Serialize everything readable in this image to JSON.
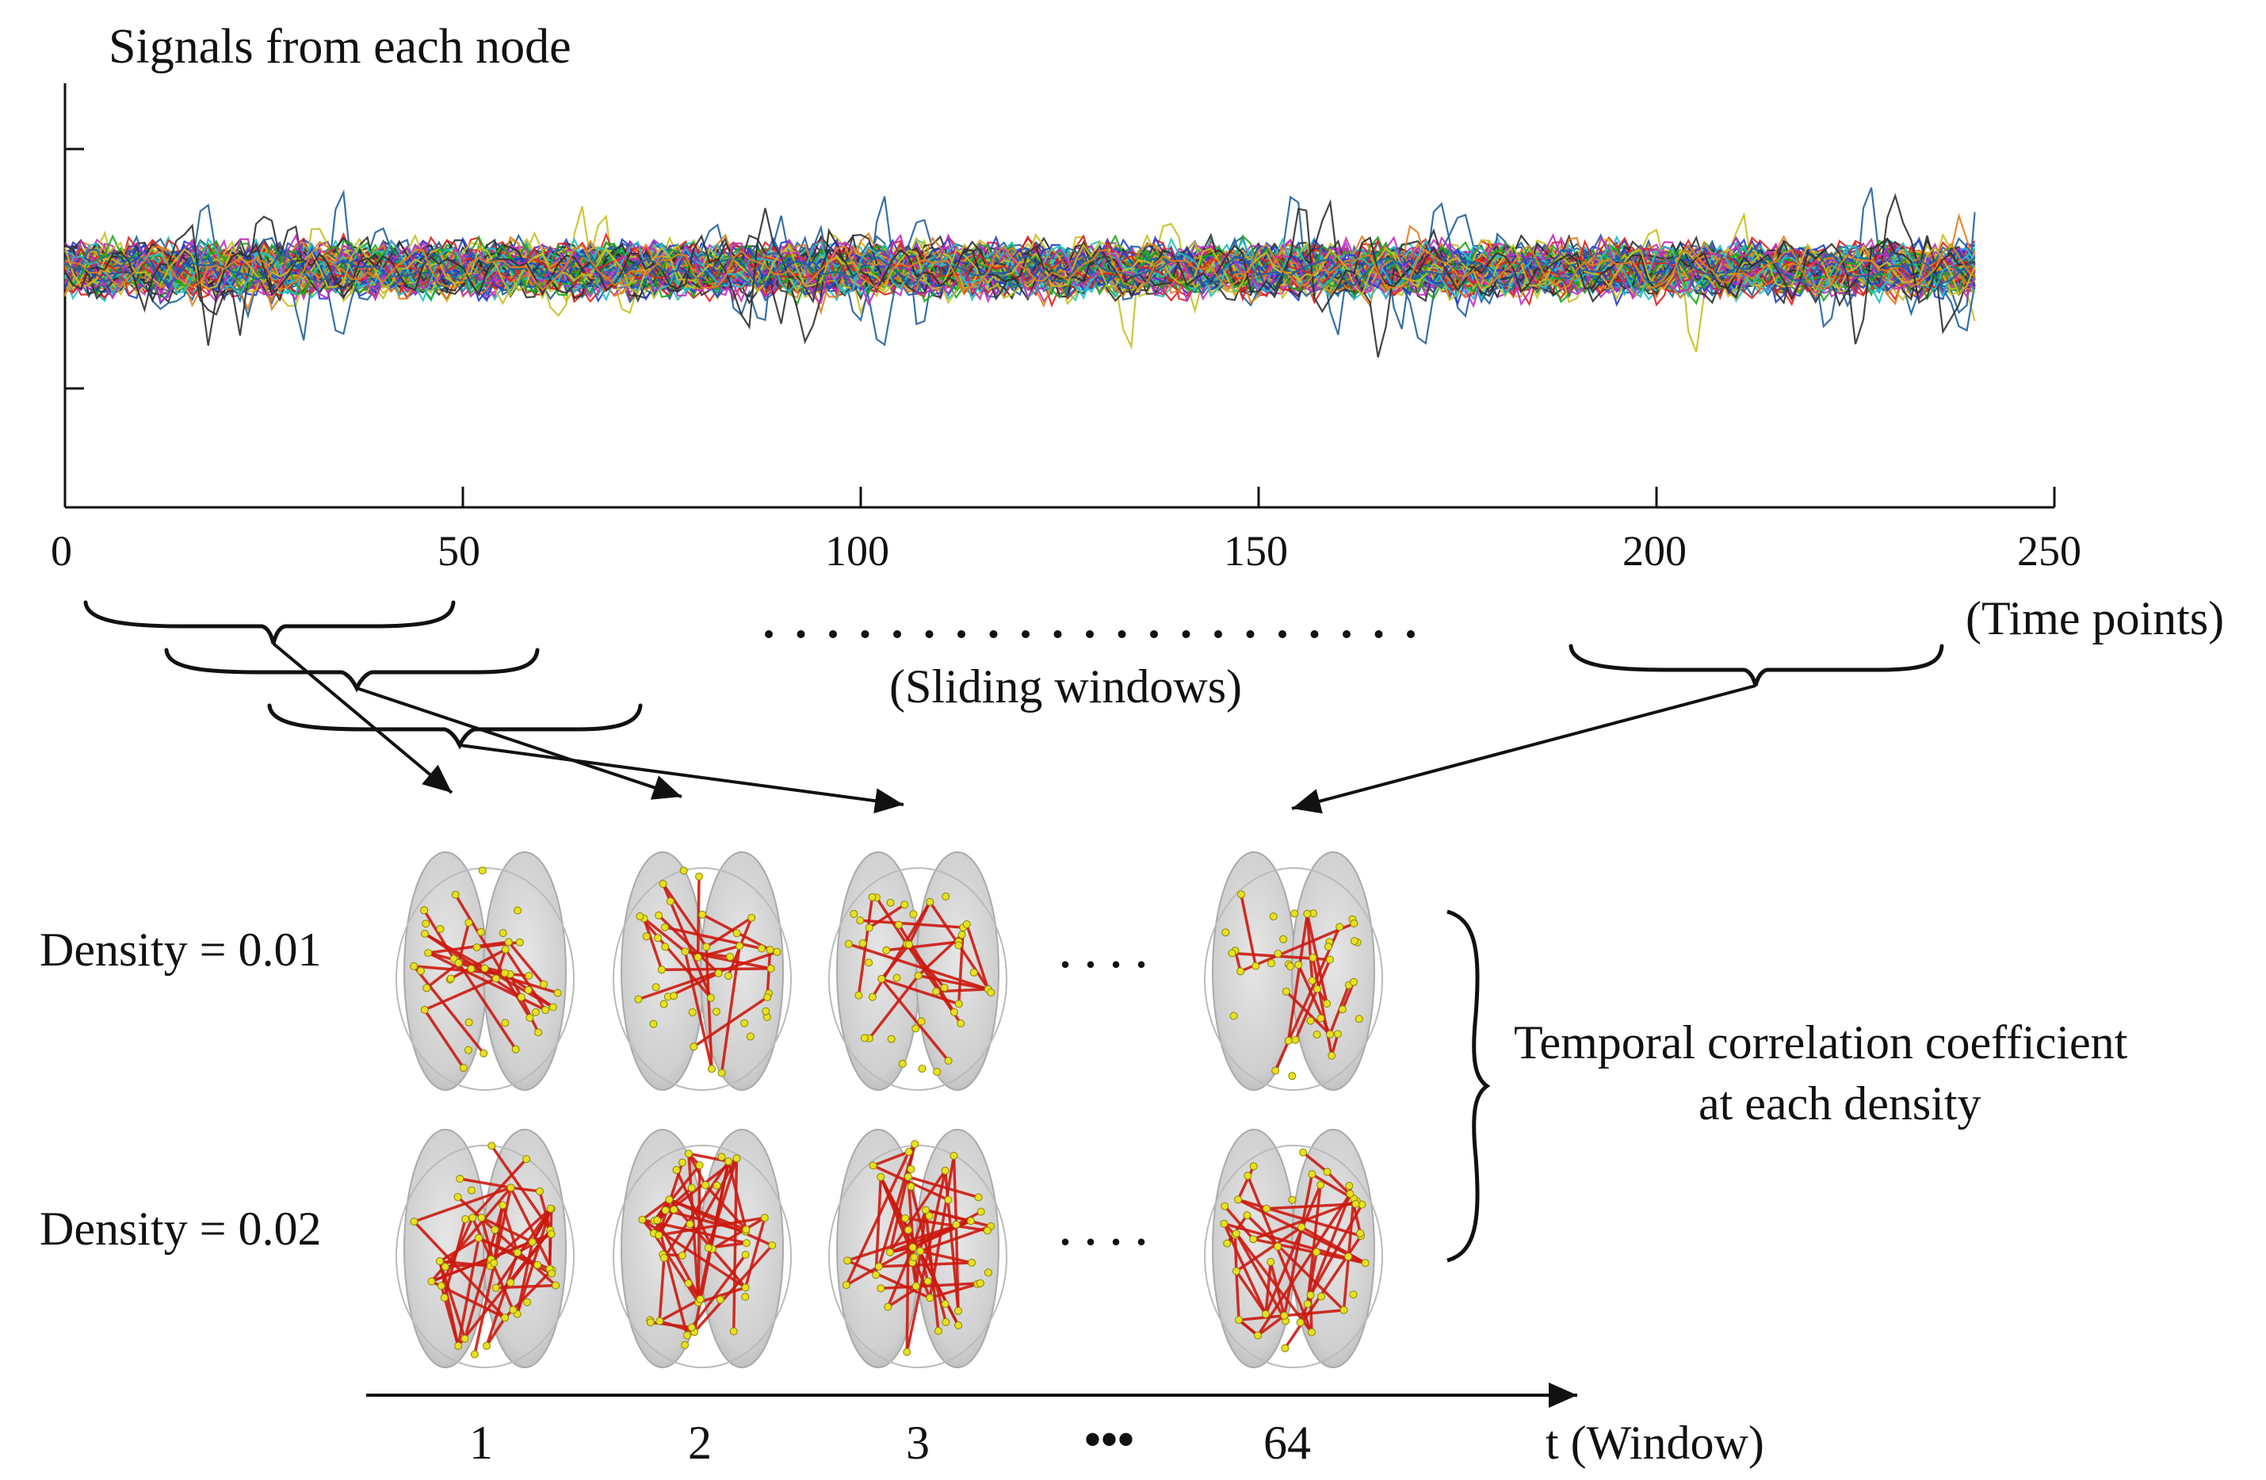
{
  "plot": {
    "title": "Signals from each node",
    "x_ticks": [
      "0",
      "50",
      "100",
      "150",
      "200",
      "250"
    ],
    "x_unit": "(Time points)"
  },
  "windows": {
    "sliding_label": "(Sliding windows)"
  },
  "networks": {
    "density_labels": [
      "Density = 0.01",
      "Density = 0.02"
    ],
    "ellipsis": "....",
    "brace_label_line1": "Temporal correlation coefficient",
    "brace_label_line2": "at each density"
  },
  "axis": {
    "labels": [
      "1",
      "2",
      "3",
      "•••",
      "64"
    ],
    "title": "t (Window)"
  },
  "colors": {
    "edge": "#cc1a10",
    "node": "#e8e020",
    "brain": "#d2d2d2",
    "ink": "#111111"
  },
  "chart_data": {
    "type": "line",
    "title": "Signals from each node",
    "xlabel": "(Time points)",
    "ylabel": "",
    "xlim": [
      0,
      250
    ],
    "x_ticks": [
      0,
      50,
      100,
      150,
      200,
      250
    ],
    "x_end": 240,
    "series_count": 90,
    "palette": [
      "#1f3fd6",
      "#1aa81a",
      "#e02020",
      "#20c0c8",
      "#c030c0",
      "#c8c020",
      "#303030",
      "#2060a0",
      "#e08020"
    ],
    "y_ticks": 2,
    "grid": false
  }
}
